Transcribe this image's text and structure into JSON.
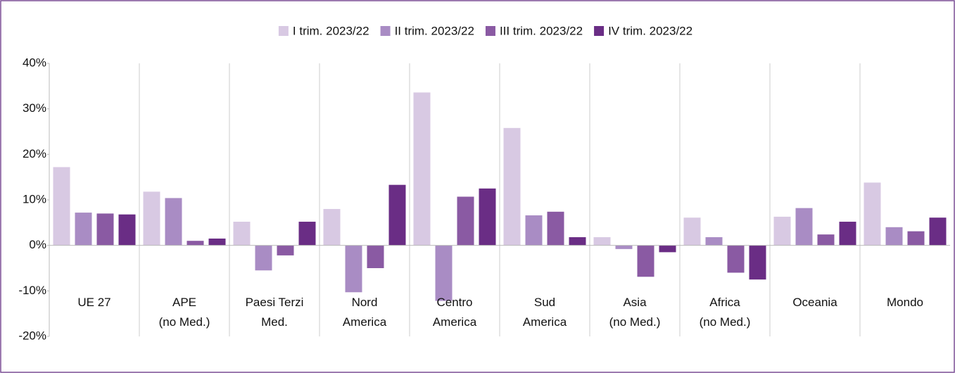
{
  "chart_data": {
    "type": "bar",
    "categories": [
      "UE 27",
      "APE\n(no Med.)",
      "Paesi Terzi\nMed.",
      "Nord\nAmerica",
      "Centro\nAmerica",
      "Sud\nAmerica",
      "Asia\n(no Med.)",
      "Africa\n(no Med.)",
      "Oceania",
      "Mondo"
    ],
    "series": [
      {
        "name": "I trim. 2023/22",
        "color": "#d8c9e3",
        "values": [
          17.2,
          11.8,
          5.2,
          8.0,
          33.6,
          25.8,
          1.8,
          6.1,
          6.3,
          13.8
        ]
      },
      {
        "name": "II trim. 2023/22",
        "color": "#a98cc4",
        "values": [
          7.2,
          10.4,
          -5.5,
          -10.3,
          -12.2,
          6.6,
          -0.8,
          1.8,
          8.2,
          4.0
        ]
      },
      {
        "name": "III trim. 2023/22",
        "color": "#8a5aa3",
        "values": [
          7.0,
          1.0,
          -2.2,
          -5.0,
          10.7,
          7.4,
          -6.9,
          -6.0,
          2.4,
          3.1
        ]
      },
      {
        "name": "IV trim. 2023/22",
        "color": "#6a2d85",
        "values": [
          6.8,
          1.5,
          5.2,
          13.3,
          12.5,
          1.8,
          -1.5,
          -7.5,
          5.2,
          6.1
        ]
      }
    ],
    "ylim": [
      -20,
      40
    ],
    "yticks": [
      {
        "value": -20,
        "label": "-20%"
      },
      {
        "value": -10,
        "label": "-10%"
      },
      {
        "value": 0,
        "label": "0%"
      },
      {
        "value": 10,
        "label": "10%"
      },
      {
        "value": 20,
        "label": "20%"
      },
      {
        "value": 30,
        "label": "30%"
      },
      {
        "value": 40,
        "label": "40%"
      }
    ],
    "legend": "top"
  }
}
